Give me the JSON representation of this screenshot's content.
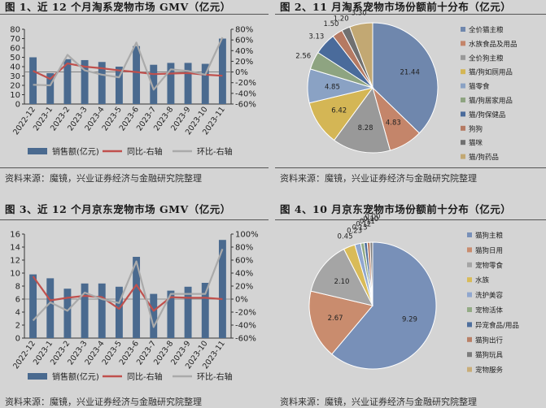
{
  "panels": [
    {
      "title": "图 1、近 12 个月淘系宠物市场 GMV（亿元）",
      "source": "资料来源：魔镜，兴业证券经济与金融研究院整理"
    },
    {
      "title": "图 2、11 月淘系宠物市场份额前十分布（亿元）",
      "source": "资料来源：魔镜，兴业证券经济与金融研究院整理"
    },
    {
      "title": "图 3、近 12 个月京东宠物市场 GMV（亿元）",
      "source": "资料来源：魔镜，兴业证券经济与金融研究院整理"
    },
    {
      "title": "图 4、10 月京东宠物市场份额前十分布（亿元）",
      "source": "资料来源：魔镜，兴业证券经济与金融研究院整理"
    }
  ],
  "chart_data": [
    {
      "type": "bar",
      "title": "图 1、近 12 个月淘系宠物市场 GMV（亿元）",
      "categories": [
        "2022-12",
        "2023-1",
        "2023-2",
        "2023-3",
        "2023-4",
        "2023-5",
        "2023-6",
        "2023-7",
        "2023-8",
        "2023-9",
        "2023-10",
        "2023-11"
      ],
      "ylim": [
        0,
        80
      ],
      "yticks": [
        0,
        10,
        20,
        30,
        40,
        50,
        60,
        70,
        80
      ],
      "y2lim": [
        -60,
        80
      ],
      "y2ticks": [
        80,
        60,
        40,
        20,
        0,
        -20,
        -40,
        -60
      ],
      "y2ticklabels": [
        "80%",
        "60%",
        "40%",
        "20%",
        "0%",
        "-20%",
        "-40%",
        "-60%"
      ],
      "series": [
        {
          "name": "销售额(亿元)",
          "kind": "bar",
          "axis": "left",
          "color": "#4a6a8f",
          "values": [
            50,
            33,
            48,
            47,
            45,
            40,
            62,
            42,
            44,
            44,
            43,
            70
          ]
        },
        {
          "name": "同比-右轴",
          "kind": "line",
          "axis": "right",
          "color": "#c0504d",
          "values": [
            2,
            -13,
            16,
            10,
            7,
            3,
            0,
            -4,
            -3,
            -2,
            -5,
            -7
          ]
        },
        {
          "name": "环比-右轴",
          "kind": "line",
          "axis": "right",
          "color": "#aaaaaa",
          "values": [
            -24,
            -25,
            32,
            3,
            -5,
            -10,
            55,
            -33,
            5,
            2,
            -5,
            65
          ]
        }
      ],
      "legend": "bottom",
      "grid": false
    },
    {
      "type": "pie",
      "title": "图 2、11 月淘系宠物市场份额前十分布（亿元）",
      "labels": [
        "全价猫主粮",
        "水族食品及用品",
        "全价狗主粮",
        "猫/狗如厕用品",
        "猫零食",
        "猫/狗居家用品",
        "猫/狗保健品",
        "狗狗",
        "猫咪",
        "猫/狗药品"
      ],
      "values": [
        21.44,
        4.83,
        8.28,
        6.42,
        4.85,
        2.56,
        3.13,
        1.5,
        1.2,
        3.3
      ],
      "value_labels": [
        "21.44",
        "4.83",
        "8.28",
        "6.42",
        "4.85",
        "2.56",
        "3.13",
        "1.50",
        "1.20",
        "3.30"
      ],
      "colors": [
        "#6f87ad",
        "#c4856a",
        "#999999",
        "#d4b655",
        "#8aa2c4",
        "#8ea481",
        "#4a6b9b",
        "#b57a63",
        "#707070",
        "#c2a873"
      ],
      "legend": "right"
    },
    {
      "type": "bar",
      "title": "图 3、近 12 个月京东宠物市场 GMV（亿元）",
      "categories": [
        "2022-12",
        "2023-1",
        "2023-2",
        "2023-3",
        "2023-4",
        "2023-5",
        "2023-6",
        "2023-7",
        "2023-8",
        "2023-9",
        "2023-10",
        "2023-11"
      ],
      "ylim": [
        0,
        16
      ],
      "yticks": [
        0,
        2,
        4,
        6,
        8,
        10,
        12,
        14,
        16
      ],
      "y2lim": [
        -60,
        100
      ],
      "y2ticks": [
        100,
        80,
        60,
        40,
        20,
        0,
        -20,
        -40,
        -60
      ],
      "y2ticklabels": [
        "100%",
        "80%",
        "60%",
        "40%",
        "20%",
        "0%",
        "-20%",
        "-40%",
        "-60%"
      ],
      "series": [
        {
          "name": "销售额(亿元)",
          "kind": "bar",
          "axis": "left",
          "color": "#4a6a8f",
          "values": [
            9.8,
            9.2,
            7.6,
            8.4,
            8.4,
            7.9,
            12.5,
            6.8,
            7.3,
            7.9,
            8.5,
            15.1
          ]
        },
        {
          "name": "同比-右轴",
          "kind": "line",
          "axis": "right",
          "color": "#c0504d",
          "values": [
            35,
            -2,
            2,
            5,
            3,
            -15,
            22,
            -18,
            3,
            2,
            2,
            0
          ]
        },
        {
          "name": "环比-右轴",
          "kind": "line",
          "axis": "right",
          "color": "#aaaaaa",
          "values": [
            -33,
            -5,
            -18,
            10,
            0,
            -6,
            58,
            -43,
            8,
            8,
            8,
            77
          ]
        }
      ],
      "legend": "bottom",
      "grid": false
    },
    {
      "type": "pie",
      "title": "图 4、10 月京东宠物市场份额前十分布（亿元）",
      "labels": [
        "猫狗主粮",
        "猫狗日用",
        "宠物零食",
        "水族",
        "洗护美容",
        "宠物活体",
        "异宠食品/用品",
        "猫狗出行",
        "猫狗玩具",
        "宠物服务"
      ],
      "values": [
        9.29,
        2.67,
        2.1,
        0.45,
        0.23,
        0.13,
        0.12,
        0.11,
        0.1,
        0.0
      ],
      "value_labels": [
        "9.29",
        "2.67",
        "2.10",
        "0.45",
        "0.23",
        "0.13",
        "0.12",
        "0.11",
        "0.10",
        "0.00"
      ],
      "colors": [
        "#7890b8",
        "#c98c6e",
        "#a5a5a5",
        "#d9bb58",
        "#90a7cf",
        "#93ab85",
        "#4e6f9d",
        "#b98066",
        "#7d7d7d",
        "#c9ad78"
      ],
      "legend": "right"
    }
  ]
}
